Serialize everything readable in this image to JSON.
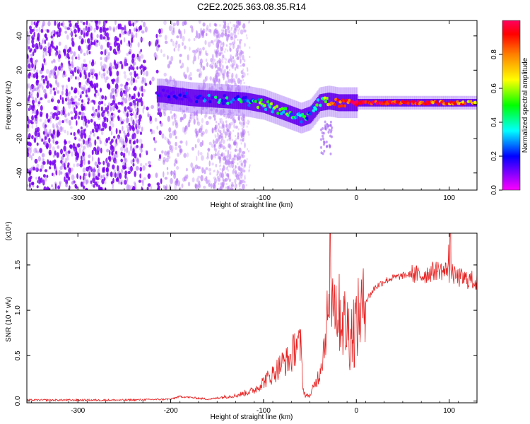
{
  "figure": {
    "title": "C2E2.2025.363.08.35.R14"
  },
  "chart_data": [
    {
      "type": "heatmap",
      "xlabel": "Height of straight line (km)",
      "ylabel": "Frequency (Hz)",
      "xlim": [
        -355,
        130
      ],
      "ylim": [
        -50,
        49
      ],
      "xticks": [
        -300,
        -200,
        -100,
        0,
        100
      ],
      "yticks": [
        -40,
        -20,
        0,
        20,
        40
      ],
      "colorbar": {
        "label": "Normalized spectral amplitude",
        "range": [
          0,
          1
        ],
        "ticks": [
          0.0,
          0.2,
          0.4,
          0.6,
          0.8
        ],
        "colormap": [
          "#ff00ff",
          "#8000ff",
          "#0000ff",
          "#00ffff",
          "#00ff00",
          "#ffff00",
          "#ff8000",
          "#ff0000",
          "#ff0060"
        ]
      },
      "ridge": {
        "x": [
          -210,
          -180,
          -150,
          -120,
          -100,
          -80,
          -60,
          -50,
          -40,
          -30,
          -20,
          0,
          20,
          60,
          100,
          130
        ],
        "y": [
          6,
          4,
          3,
          2,
          0,
          -4,
          -8,
          -6,
          1,
          2,
          1,
          1,
          1,
          1,
          1,
          1
        ],
        "amplitude": [
          0.2,
          0.2,
          0.3,
          0.35,
          0.45,
          0.45,
          0.4,
          0.35,
          0.5,
          0.6,
          0.8,
          0.95,
          0.9,
          0.85,
          0.8,
          0.7
        ]
      }
    },
    {
      "type": "line",
      "xlabel": "Height of straight line (km)",
      "ylabel": "SNR (10 * v/v)",
      "scale_label": "(x10⁴)",
      "xlim": [
        -355,
        130
      ],
      "ylim": [
        -0.02,
        1.85
      ],
      "xticks": [
        -300,
        -200,
        -100,
        0,
        100
      ],
      "yticks": [
        0.0,
        0.5,
        1.0,
        1.5
      ],
      "ytick_labels": [
        "0.0",
        "0.5",
        "1.0",
        "1.5"
      ],
      "line_color": "#e62020",
      "series": [
        {
          "x": [
            -355,
            -250,
            -200,
            -190,
            -160,
            -130,
            -110,
            -100,
            -90,
            -80,
            -70,
            -65,
            -60,
            -57,
            -55,
            -50,
            -45,
            -40,
            -35,
            -30,
            -25,
            -20,
            -15,
            -10,
            -5,
            0,
            5,
            10,
            20,
            30,
            40,
            50,
            60,
            70,
            80,
            90,
            95,
            100,
            105,
            110,
            120,
            130
          ],
          "y": [
            0.01,
            0.01,
            0.02,
            0.05,
            0.02,
            0.05,
            0.1,
            0.18,
            0.25,
            0.35,
            0.4,
            0.55,
            0.5,
            0.1,
            0.05,
            0.05,
            0.15,
            0.25,
            0.5,
            0.9,
            1.2,
            1.0,
            0.9,
            0.8,
            0.75,
            0.85,
            1.0,
            1.1,
            1.25,
            1.32,
            1.36,
            1.38,
            1.4,
            1.38,
            1.42,
            1.45,
            1.42,
            1.5,
            1.38,
            1.36,
            1.34,
            1.32
          ]
        }
      ]
    }
  ]
}
